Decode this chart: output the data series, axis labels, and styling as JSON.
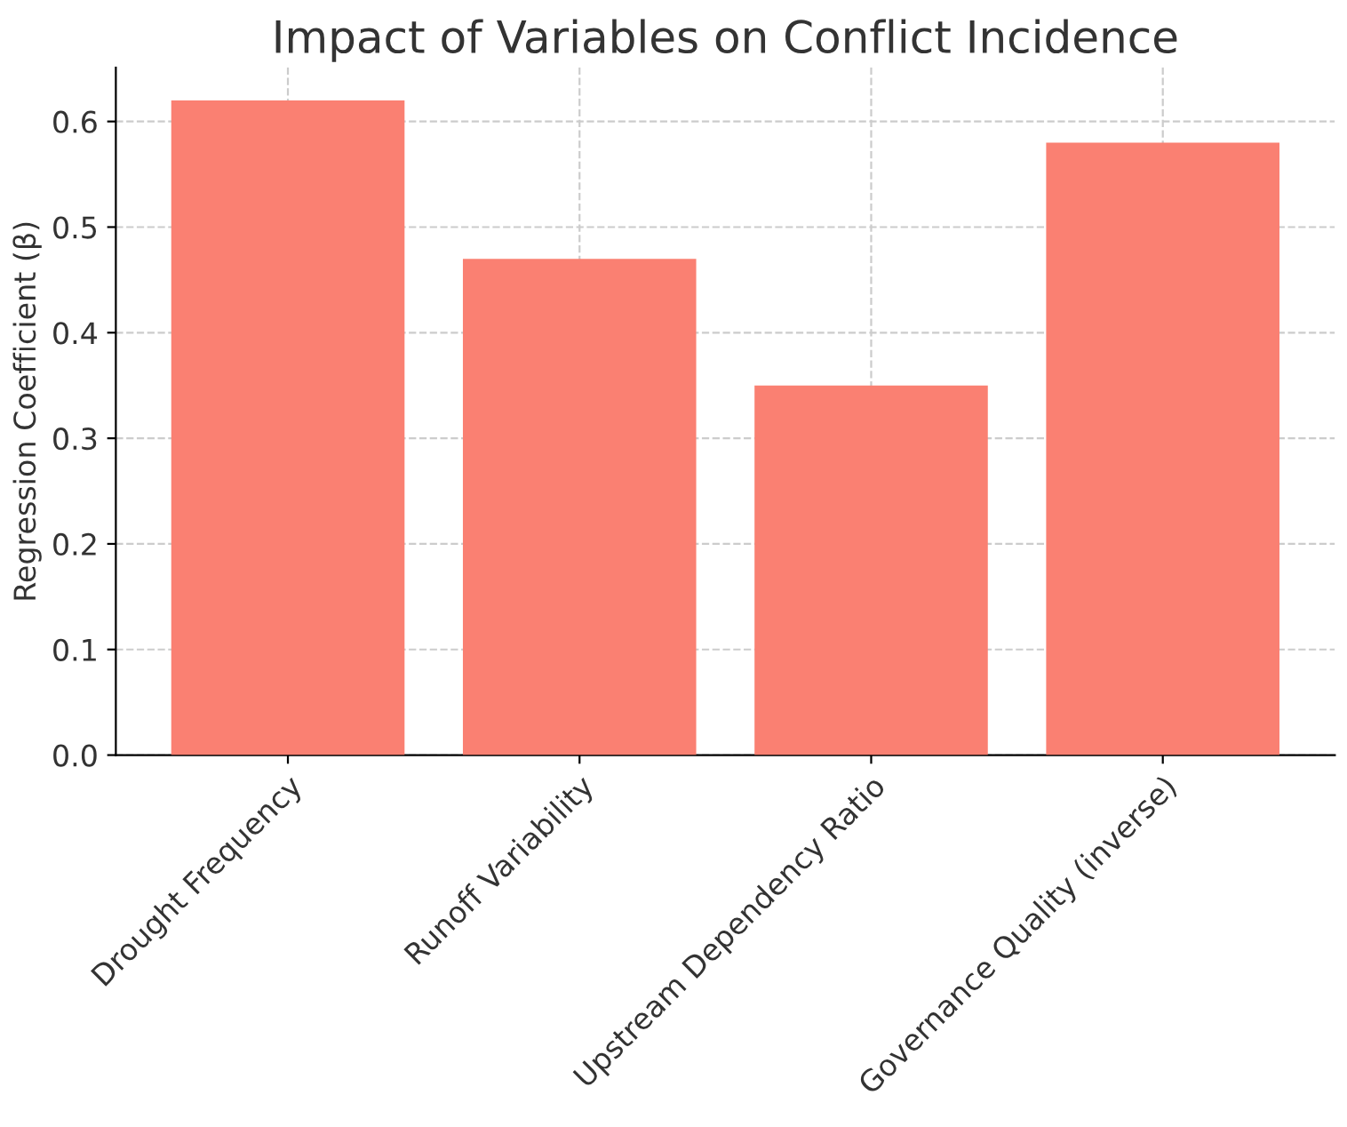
{
  "chart_data": {
    "type": "bar",
    "title": "Impact of Variables on Conflict Incidence",
    "ylabel": "Regression Coefficient (β)",
    "categories": [
      "Drought Frequency",
      "Runoff Variability",
      "Upstream Dependency Ratio",
      "Governance Quality (inverse)"
    ],
    "values": [
      0.62,
      0.47,
      0.35,
      0.58
    ],
    "color": "#fa8072",
    "ylim": [
      0,
      0.651
    ],
    "yticks": [
      {
        "value": 0,
        "label": "0.0"
      },
      0.1,
      0.2,
      0.3,
      0.4,
      0.5,
      0.6
    ],
    "grid": true,
    "line_style": "dashed"
  }
}
